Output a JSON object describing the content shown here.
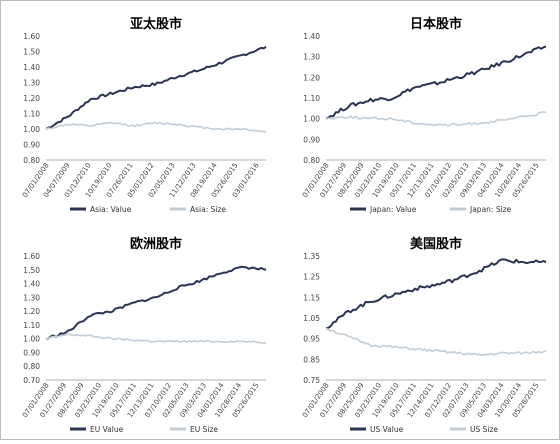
{
  "chart_data": [
    {
      "type": "line",
      "title": "亚太股市",
      "ylim": [
        0.8,
        1.6
      ],
      "ytick_labels": [
        "0.80",
        "0.90",
        "1.00",
        "1.10",
        "1.20",
        "1.30",
        "1.40",
        "1.50",
        "1.60"
      ],
      "x_tick_labels": [
        "07/01/2008",
        "04/07/2009",
        "01/12/2010",
        "10/19/2010",
        "07/26/2011",
        "05/01/2012",
        "02/05/2013",
        "11/12/2013",
        "08/19/2014",
        "05/26/2015",
        "03/01/2016"
      ],
      "x_fraction": [
        0,
        0.1,
        0.2,
        0.3,
        0.4,
        0.5,
        0.6,
        0.7,
        0.8,
        0.9,
        1.0
      ],
      "series": [
        {
          "name": "Asia: Value",
          "color": "#2b3553",
          "values": [
            1.0,
            1.08,
            1.19,
            1.23,
            1.27,
            1.29,
            1.34,
            1.38,
            1.43,
            1.48,
            1.53
          ]
        },
        {
          "name": "Asia: Size",
          "color": "#c3cdd6",
          "values": [
            1.0,
            1.03,
            1.02,
            1.04,
            1.02,
            1.04,
            1.03,
            1.01,
            1.0,
            1.0,
            0.98
          ]
        }
      ],
      "legend_position": "bottom"
    },
    {
      "type": "line",
      "title": "日本股市",
      "ylim": [
        0.8,
        1.4
      ],
      "ytick_labels": [
        "0.80",
        "0.90",
        "1.00",
        "1.10",
        "1.20",
        "1.30",
        "1.40"
      ],
      "x_tick_labels": [
        "07/01/2008",
        "01/27/2009",
        "08/25/2009",
        "03/23/2010",
        "10/19/2010",
        "05/17/2011",
        "12/13/2011",
        "07/10/2012",
        "02/05/2013",
        "09/03/2013",
        "04/01/2014",
        "10/28/2014",
        "05/26/2015"
      ],
      "x_fraction": [
        0,
        0.1,
        0.2,
        0.3,
        0.4,
        0.5,
        0.6,
        0.7,
        0.8,
        0.9,
        1.0
      ],
      "series": [
        {
          "name": "Japan: Value",
          "color": "#2b3553",
          "values": [
            1.0,
            1.06,
            1.09,
            1.1,
            1.15,
            1.17,
            1.2,
            1.23,
            1.27,
            1.31,
            1.35
          ]
        },
        {
          "name": "Japan: Size",
          "color": "#c3cdd6",
          "values": [
            1.0,
            1.01,
            1.0,
            1.0,
            0.98,
            0.97,
            0.97,
            0.98,
            0.99,
            1.01,
            1.03
          ]
        }
      ],
      "legend_position": "bottom"
    },
    {
      "type": "line",
      "title": "欧洲股市",
      "ylim": [
        0.7,
        1.6
      ],
      "ytick_labels": [
        "0.70",
        "0.80",
        "0.90",
        "1.00",
        "1.10",
        "1.20",
        "1.30",
        "1.40",
        "1.50",
        "1.60"
      ],
      "x_tick_labels": [
        "07/01/2008",
        "01/27/2009",
        "08/25/2009",
        "03/23/2010",
        "10/19/2010",
        "05/17/2011",
        "12/13/2011",
        "07/10/2012",
        "02/05/2013",
        "09/03/2013",
        "04/01/2014",
        "10/28/2014",
        "05/26/2015"
      ],
      "x_fraction": [
        0,
        0.1,
        0.2,
        0.3,
        0.4,
        0.5,
        0.6,
        0.7,
        0.8,
        0.9,
        1.0
      ],
      "series": [
        {
          "name": "EU Value",
          "color": "#2b3553",
          "values": [
            1.0,
            1.05,
            1.17,
            1.2,
            1.26,
            1.3,
            1.37,
            1.42,
            1.48,
            1.52,
            1.5
          ]
        },
        {
          "name": "EU Size",
          "color": "#c3cdd6",
          "values": [
            1.0,
            1.03,
            1.02,
            1.0,
            0.99,
            0.98,
            0.98,
            0.98,
            0.98,
            0.98,
            0.97
          ]
        }
      ],
      "legend_position": "bottom"
    },
    {
      "type": "line",
      "title": "美国股市",
      "ylim": [
        0.75,
        1.35
      ],
      "ytick_labels": [
        "0.75",
        "0.85",
        "0.95",
        "1.05",
        "1.15",
        "1.25",
        "1.35"
      ],
      "x_tick_labels": [
        "07/01/2008",
        "01/27/2009",
        "08/25/2009",
        "03/23/2010",
        "10/19/2010",
        "05/17/2011",
        "12/14/2011",
        "07/12/2012",
        "02/07/2013",
        "09/05/2013",
        "04/03/2014",
        "10/30/2014",
        "05/28/2015"
      ],
      "x_fraction": [
        0,
        0.1,
        0.2,
        0.3,
        0.4,
        0.5,
        0.6,
        0.7,
        0.8,
        0.9,
        1.0
      ],
      "series": [
        {
          "name": "US Value",
          "color": "#2b3553",
          "values": [
            1.0,
            1.08,
            1.13,
            1.16,
            1.19,
            1.21,
            1.24,
            1.28,
            1.33,
            1.32,
            1.32
          ]
        },
        {
          "name": "US Size",
          "color": "#c3cdd6",
          "values": [
            1.0,
            0.96,
            0.92,
            0.91,
            0.9,
            0.89,
            0.88,
            0.87,
            0.88,
            0.88,
            0.89
          ]
        }
      ],
      "legend_position": "bottom"
    }
  ]
}
